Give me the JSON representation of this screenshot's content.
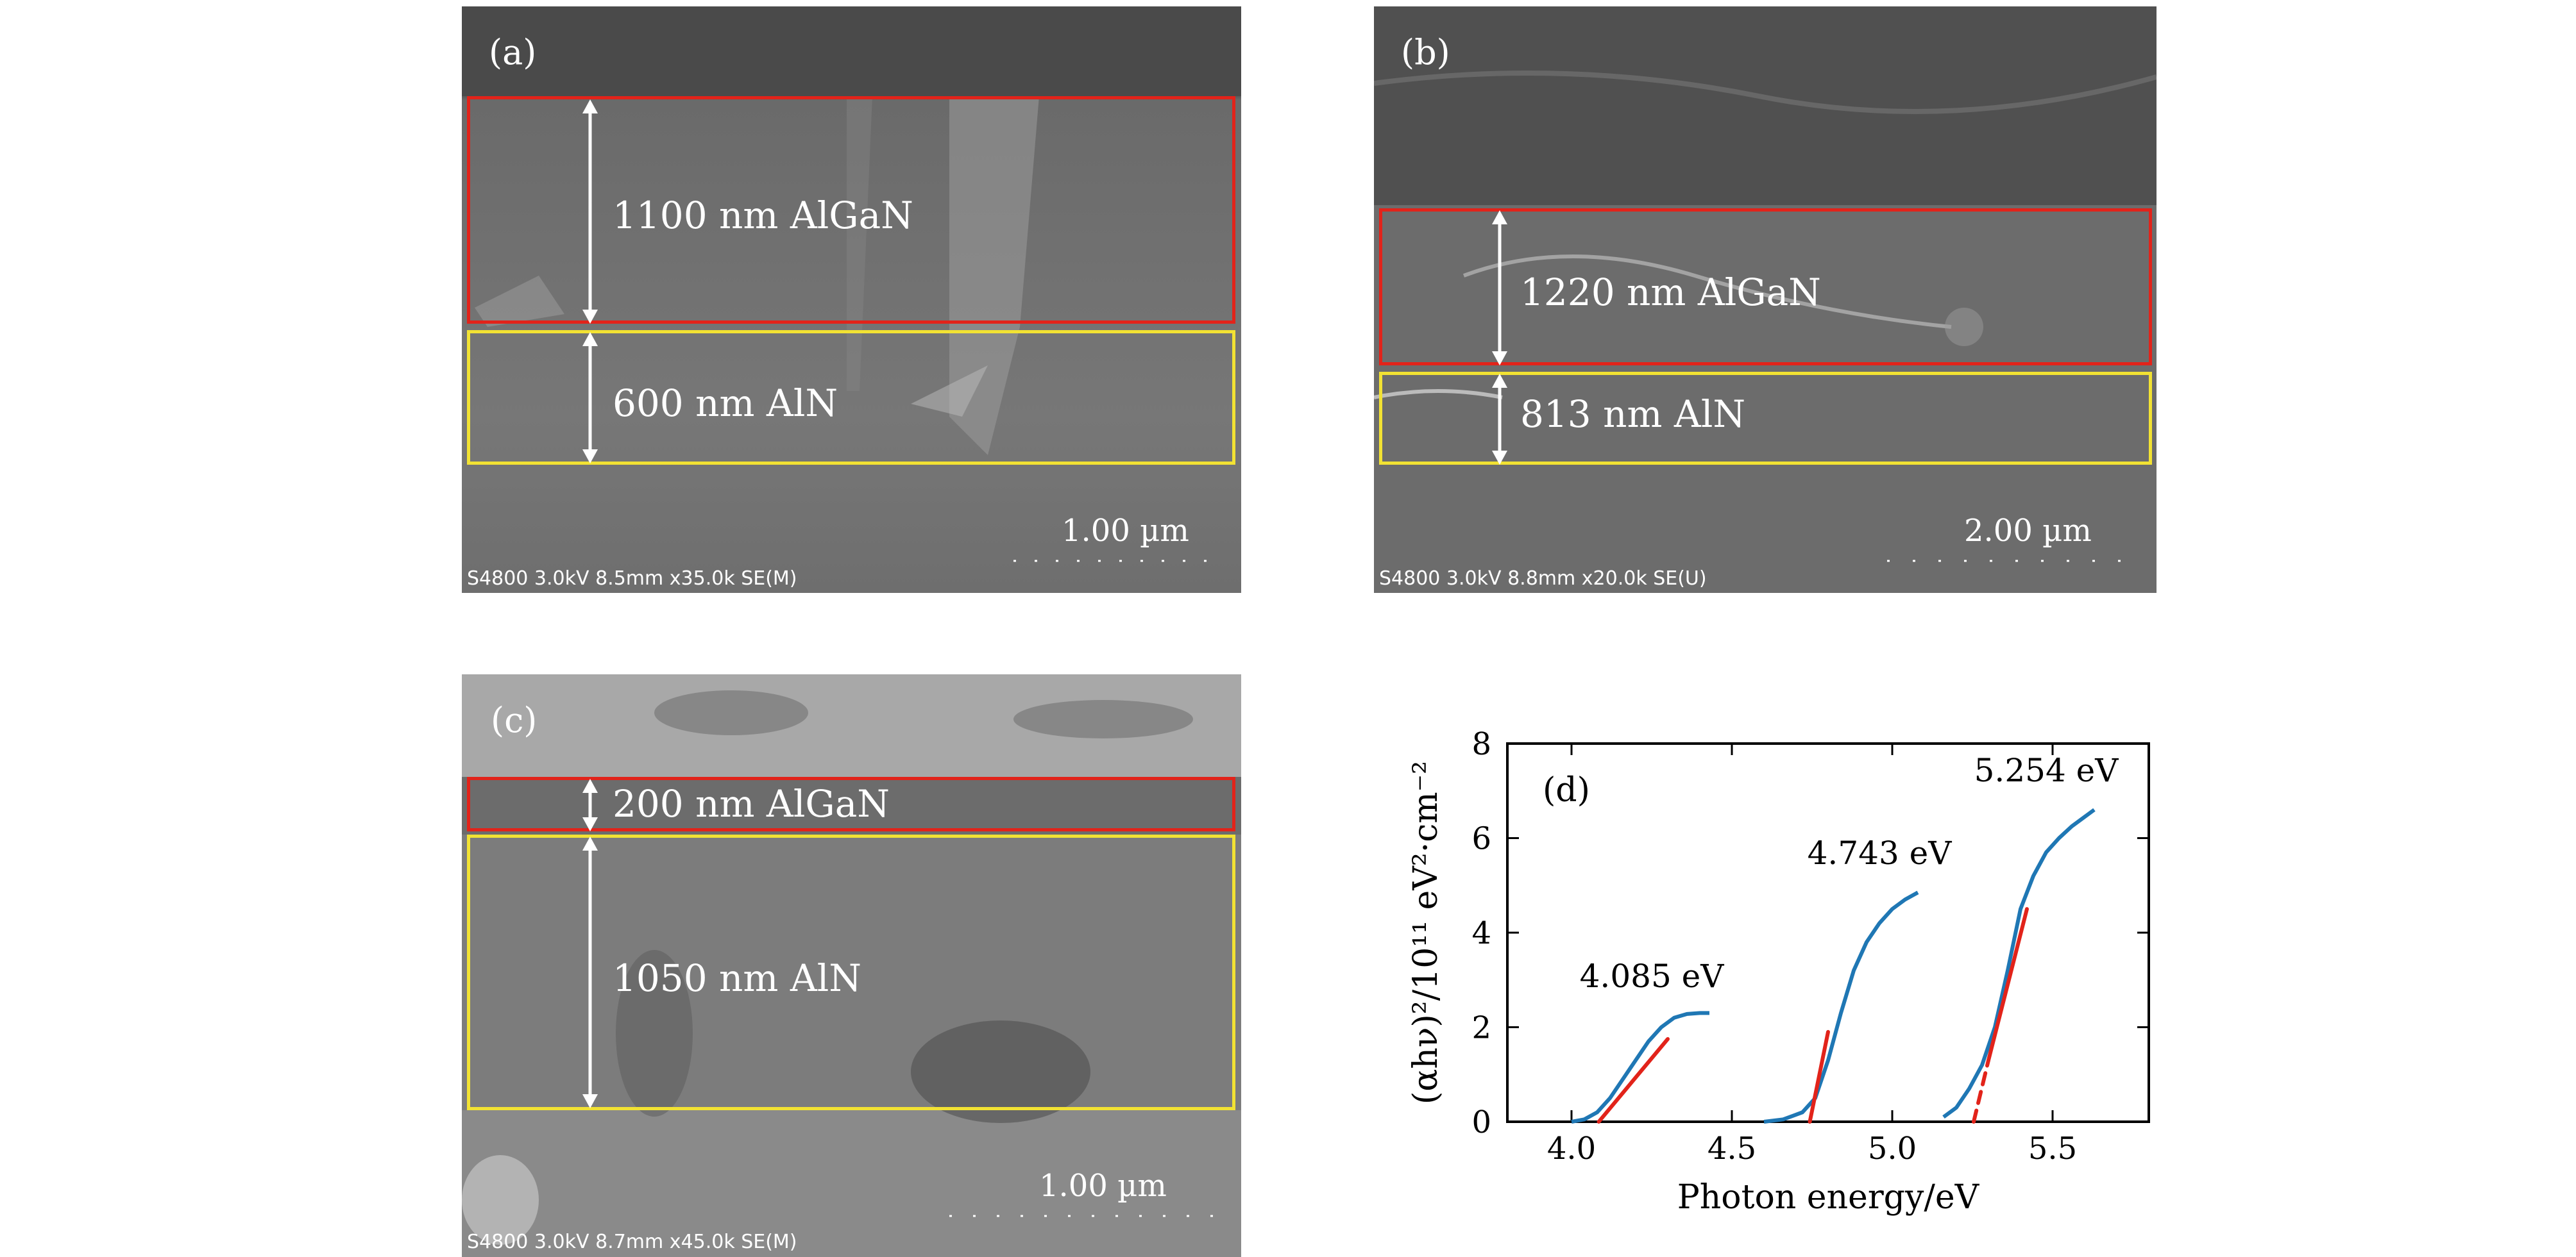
{
  "panels": {
    "a": {
      "label": "(a)",
      "top_layer": "1100 nm AlGaN",
      "bottom_layer": "600 nm AlN",
      "scale": "1.00 µm",
      "meta": "S4800 3.0kV 8.5mm x35.0k SE(M)"
    },
    "b": {
      "label": "(b)",
      "top_layer": "1220 nm AlGaN",
      "bottom_layer": "813 nm AlN",
      "scale": "2.00 µm",
      "meta": "S4800 3.0kV 8.8mm x20.0k SE(U)"
    },
    "c": {
      "label": "(c)",
      "top_layer": "200 nm AlGaN",
      "bottom_layer": "1050 nm AlN",
      "scale": "1.00 µm",
      "meta": "S4800 3.0kV 8.7mm x45.0k SE(M)"
    }
  },
  "colors": {
    "algan_box": "#e2231a",
    "aln_box": "#f2e233",
    "curve": "#1f77b4",
    "fit": "#e2231a"
  },
  "chart_data": {
    "type": "line",
    "panel_label": "(d)",
    "xlabel": "Photon energy/eV",
    "ylabel": "(αhν)²/10¹¹ eV²·cm⁻²",
    "xlim": [
      3.8,
      5.8
    ],
    "ylim": [
      0,
      8
    ],
    "xticks": [
      4.0,
      4.5,
      5.0,
      5.5
    ],
    "xtick_labels": [
      "4.0",
      "4.5",
      "5.0",
      "5.5"
    ],
    "yticks": [
      0,
      2,
      4,
      6,
      8
    ],
    "ytick_labels": [
      "0",
      "2",
      "4",
      "6",
      "8"
    ],
    "grid": false,
    "series": [
      {
        "x": [
          4.0,
          4.04,
          4.08,
          4.12,
          4.16,
          4.2,
          4.24,
          4.28,
          4.32,
          4.36,
          4.4,
          4.43
        ],
        "y": [
          0.0,
          0.05,
          0.2,
          0.5,
          0.9,
          1.3,
          1.7,
          2.0,
          2.2,
          2.28,
          2.3,
          2.3
        ]
      },
      {
        "x": [
          4.6,
          4.66,
          4.72,
          4.76,
          4.8,
          4.84,
          4.88,
          4.92,
          4.96,
          5.0,
          5.04,
          5.08
        ],
        "y": [
          0.0,
          0.05,
          0.2,
          0.5,
          1.3,
          2.3,
          3.2,
          3.8,
          4.2,
          4.5,
          4.7,
          4.85
        ]
      },
      {
        "x": [
          5.16,
          5.2,
          5.24,
          5.28,
          5.32,
          5.36,
          5.4,
          5.44,
          5.48,
          5.52,
          5.56,
          5.6,
          5.63
        ],
        "y": [
          0.1,
          0.3,
          0.7,
          1.2,
          2.0,
          3.2,
          4.5,
          5.2,
          5.7,
          6.0,
          6.25,
          6.45,
          6.6
        ]
      }
    ],
    "fits": [
      {
        "x": [
          4.085,
          4.3
        ],
        "y": [
          0.0,
          1.75
        ],
        "dashed": false
      },
      {
        "x": [
          4.743,
          4.8
        ],
        "y": [
          0.0,
          1.9
        ],
        "dashed": false
      },
      {
        "x": [
          5.254,
          5.3
        ],
        "y": [
          0.0,
          1.3
        ],
        "dashed": true
      },
      {
        "x": [
          5.3,
          5.42
        ],
        "y": [
          1.3,
          4.5
        ],
        "dashed": false
      }
    ],
    "annotations": [
      {
        "text": "4.085 eV",
        "x": 4.25,
        "y": 2.85
      },
      {
        "text": "4.743 eV",
        "x": 4.96,
        "y": 5.45
      },
      {
        "text": "5.254 eV",
        "x": 5.48,
        "y": 7.2
      }
    ]
  }
}
